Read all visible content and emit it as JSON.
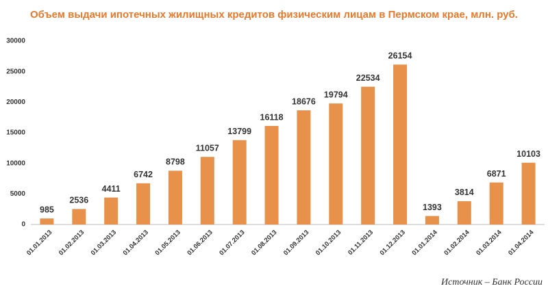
{
  "chart_data": {
    "type": "bar",
    "title": "Объем выдачи ипотечных жилищных кредитов физическим лицам в Пермском крае, млн. руб.",
    "source": "Источник – Банк России",
    "categories": [
      "01.01.2013",
      "01.02.2013",
      "01.03.2013",
      "01.04.2013",
      "01.05.2013",
      "01.06.2013",
      "01.07.2013",
      "01.08.2013",
      "01.09.2013",
      "01.10.2013",
      "01.11.2013",
      "01.12.2013",
      "01.01.2014",
      "01.02.2014",
      "01.03.2014",
      "01.04.2014"
    ],
    "values": [
      985,
      2536,
      4411,
      6742,
      8798,
      11057,
      13799,
      16118,
      18676,
      19794,
      22534,
      26154,
      1393,
      3814,
      6871,
      10103
    ],
    "color": "#e8914a",
    "ylim": [
      0,
      30000
    ],
    "yticks": [
      0,
      5000,
      10000,
      15000,
      20000,
      25000,
      30000
    ],
    "grid": false
  }
}
